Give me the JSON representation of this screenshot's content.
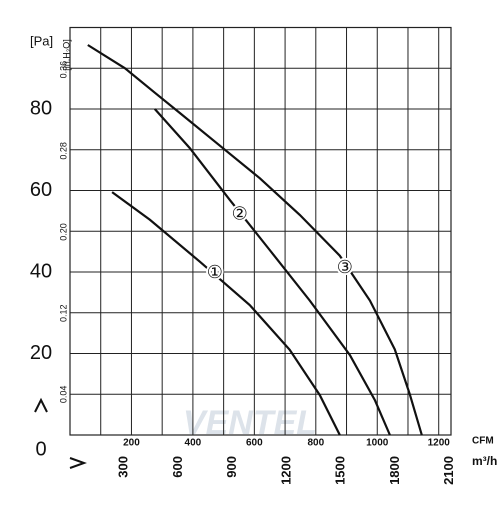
{
  "chart_data": {
    "type": "line",
    "y_label": "[Pa]",
    "y2_label": "[in.H₂O]",
    "x_label": "CFM",
    "x2_label": "m³/h",
    "watermark": "VENTEL",
    "xlim": [
      0,
      1240
    ],
    "ylim": [
      0,
      100
    ],
    "xticks": [
      200,
      400,
      600,
      800,
      1000,
      1200
    ],
    "yticks": [
      0,
      20,
      40,
      60,
      80
    ],
    "xgrid": [
      0,
      100,
      200,
      300,
      400,
      500,
      600,
      700,
      800,
      900,
      1000,
      1100,
      1200
    ],
    "ygrid": [
      0,
      10,
      20,
      30,
      40,
      50,
      60,
      70,
      80,
      90
    ],
    "x2lim": [
      0,
      2107
    ],
    "x2ticks": [
      300,
      600,
      900,
      1200,
      1500,
      1800,
      2100
    ],
    "y2lim": [
      0,
      0.4015
    ],
    "y2ticks": [
      0.04,
      0.12,
      {
        "value": 0.2,
        "label": "0.20"
      },
      0.28,
      0.36
    ],
    "series": [
      {
        "name": "①",
        "color": "#111111",
        "x": [
          137,
          260,
          423,
          585,
          715,
          813,
          878
        ],
        "values": [
          59.6,
          52.8,
          42.5,
          31.9,
          20.9,
          9.8,
          0
        ],
        "label_at": 2
      },
      {
        "name": "②",
        "color": "#111111",
        "x": [
          276,
          390,
          520,
          650,
          780,
          911,
          992,
          1041
        ],
        "values": [
          80,
          70.4,
          57.7,
          45.4,
          33,
          19.6,
          8.6,
          0
        ],
        "label_at": 2
      },
      {
        "name": "③",
        "color": "#111111",
        "x": [
          58,
          179,
          276,
          358,
          488,
          618,
          748,
          878,
          976,
          1057,
          1106,
          1145
        ],
        "values": [
          95.7,
          90,
          84,
          79,
          71,
          63,
          54,
          44,
          33,
          21,
          10,
          0
        ],
        "label_at": 7
      }
    ]
  }
}
